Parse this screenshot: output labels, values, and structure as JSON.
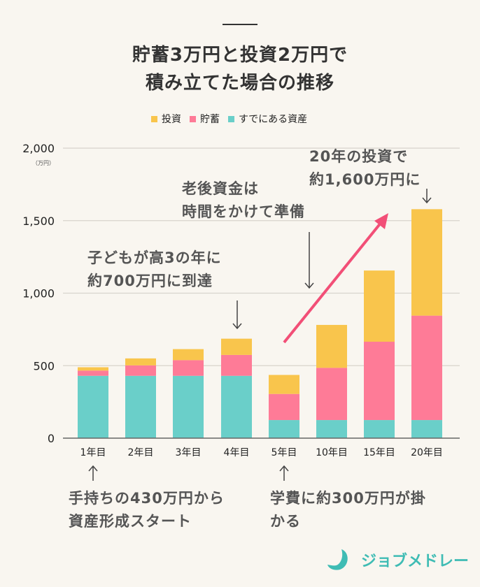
{
  "title": {
    "line1": "貯蓄3万円と投資2万円で",
    "line2": "積み立てた場合の推移"
  },
  "annotations": {
    "a1": [
      "20年の投資で",
      "約1,600万円に"
    ],
    "a2": [
      "老後資金は",
      "時間をかけて準備"
    ],
    "a3": [
      "子どもが高3の年に",
      "約700万円に到達"
    ],
    "a4": [
      "手持ちの430万円から",
      "資産形成スタート"
    ],
    "a5": [
      "学費に約300万円が掛",
      "かる"
    ]
  },
  "logo": {
    "text": "ジョブメドレー"
  },
  "colors": {
    "invest": "#f9c54c",
    "savings": "#fe7b97",
    "existing": "#6acfc9",
    "arrow": "#f24f77"
  },
  "chart_data": {
    "type": "bar",
    "stacked": true,
    "categories": [
      "1年目",
      "2年目",
      "3年目",
      "4年目",
      "5年目",
      "10年目",
      "15年目",
      "20年目"
    ],
    "series": [
      {
        "name": "すでにある資産",
        "values": [
          430,
          430,
          430,
          430,
          125,
          125,
          125,
          125
        ]
      },
      {
        "name": "貯蓄",
        "values": [
          36,
          72,
          108,
          144,
          180,
          360,
          540,
          720
        ]
      },
      {
        "name": "投資",
        "values": [
          23,
          48,
          76,
          112,
          131,
          296,
          491,
          734
        ]
      }
    ],
    "legend": [
      "投資",
      "貯蓄",
      "すでにある資産"
    ],
    "legend_position": "top",
    "yunit": "（万円）",
    "ylim": [
      0,
      2000
    ],
    "yticks": [
      0,
      500,
      1000,
      1500,
      2000
    ],
    "ytick_labels": [
      "0",
      "500",
      "1,000",
      "1,500",
      "2,000"
    ],
    "grid": true
  }
}
